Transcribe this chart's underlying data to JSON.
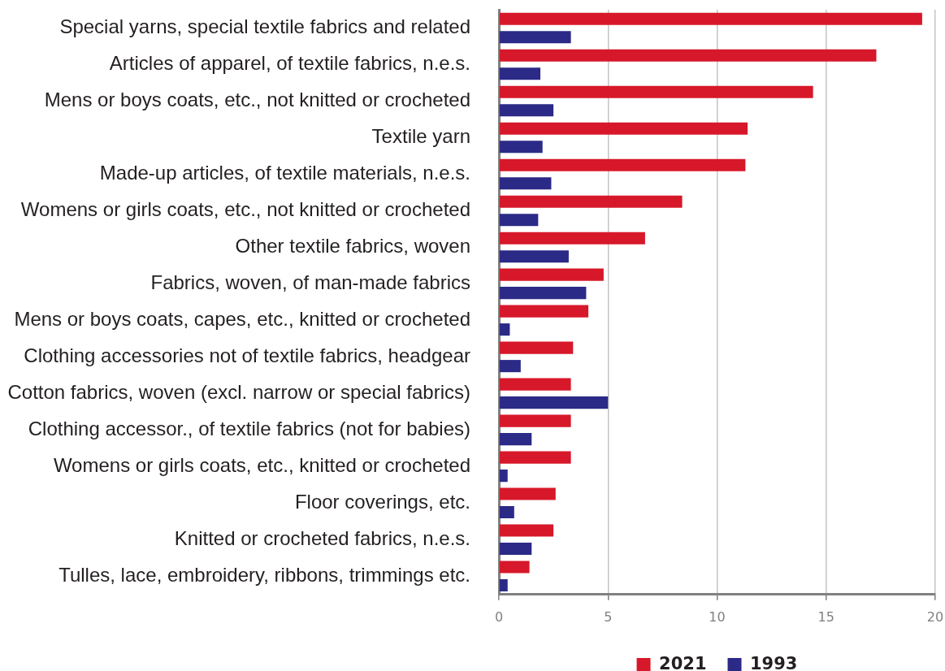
{
  "chart_data": {
    "type": "bar",
    "orientation": "horizontal",
    "categories": [
      "Special yarns, special textile fabrics and related",
      "Articles of apparel, of textile fabrics, n.e.s.",
      "Mens or boys coats, etc., not knitted or crocheted",
      "Textile yarn",
      "Made-up articles, of textile materials, n.e.s.",
      "Womens or girls coats, etc., not knitted or crocheted",
      "Other textile fabrics, woven",
      "Fabrics, woven, of man-made fabrics",
      "Mens or boys coats, capes, etc., knitted or crocheted",
      "Clothing accessories not of textile fabrics, headgear",
      "Cotton fabrics, woven (excl. narrow or special fabrics)",
      "Clothing accessor., of textile fabrics (not for babies)",
      "Womens or girls coats, etc., knitted or crocheted",
      "Floor coverings, etc.",
      "Knitted or crocheted fabrics, n.e.s.",
      "Tulles, lace, embroidery, ribbons, trimmings etc."
    ],
    "series": [
      {
        "name": "2021",
        "color": "#d7182a",
        "values": [
          19.4,
          17.3,
          14.4,
          11.4,
          11.3,
          8.4,
          6.7,
          4.8,
          4.1,
          3.4,
          3.3,
          3.3,
          3.3,
          2.6,
          2.5,
          1.4
        ]
      },
      {
        "name": "1993",
        "color": "#2b2a87",
        "values": [
          3.3,
          1.9,
          2.5,
          2.0,
          2.4,
          1.8,
          3.2,
          4.0,
          0.5,
          1.0,
          5.0,
          1.5,
          0.4,
          0.7,
          1.5,
          0.4
        ]
      }
    ],
    "xlim": [
      0,
      20
    ],
    "xticks": [
      0,
      5,
      10,
      15,
      20
    ],
    "grid": "x",
    "legend": "bottom"
  }
}
